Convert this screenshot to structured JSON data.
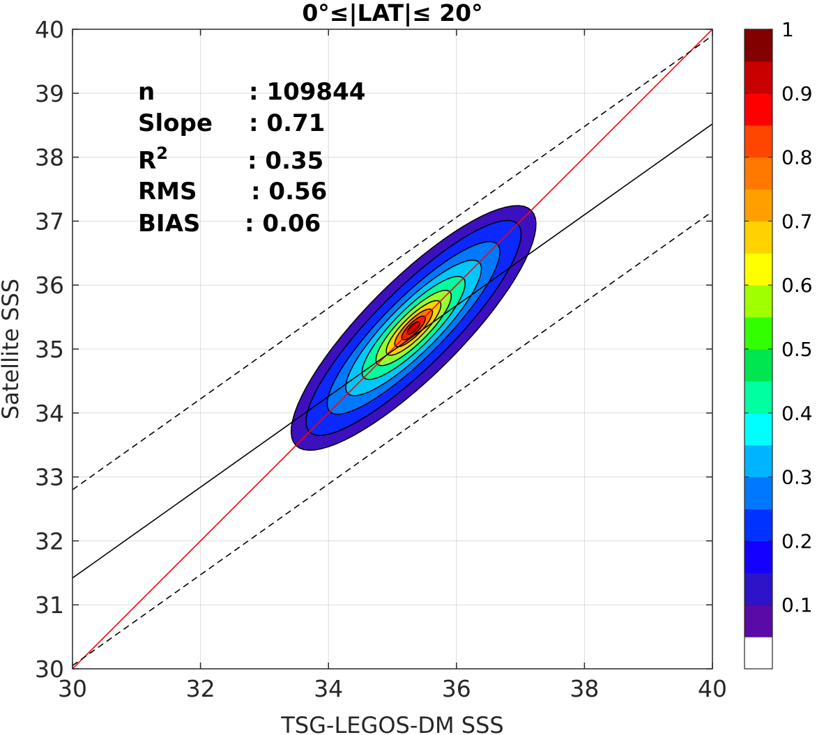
{
  "chart_data": {
    "type": "contour",
    "title": "0°≤|LAT|≤ 20°",
    "xlabel": "TSG-LEGOS-DM SSS",
    "ylabel": "Satellite SSS",
    "xlim": [
      30,
      40
    ],
    "ylim": [
      30,
      40
    ],
    "xticks": [
      30,
      32,
      34,
      36,
      38,
      40
    ],
    "yticks": [
      30,
      31,
      32,
      33,
      34,
      35,
      36,
      37,
      38,
      39,
      40
    ],
    "grid": true,
    "stats": [
      {
        "key": "n",
        "value": ": 109844"
      },
      {
        "key": "Slope",
        "value": ": 0.71"
      },
      {
        "key": "R",
        "sup": "2",
        "value": ": 0.35"
      },
      {
        "key": "RMS",
        "value": ": 0.56"
      },
      {
        "key": "BIAS",
        "value": ": 0.06"
      }
    ],
    "lines": [
      {
        "name": "one-to-one",
        "color": "#ff0000",
        "style": "solid",
        "x": [
          30,
          40
        ],
        "y": [
          30,
          40
        ]
      },
      {
        "name": "regression",
        "color": "#000000",
        "style": "solid",
        "x": [
          30,
          40
        ],
        "y": [
          31.42,
          38.52
        ]
      },
      {
        "name": "upper-bound",
        "color": "#000000",
        "style": "dashed",
        "x": [
          30,
          40
        ],
        "y": [
          32.8,
          39.9
        ]
      },
      {
        "name": "lower-bound",
        "color": "#000000",
        "style": "dashed",
        "x": [
          30,
          40
        ],
        "y": [
          30.05,
          37.15
        ]
      }
    ],
    "density": {
      "center": [
        35.33,
        35.33
      ],
      "angle_deg": 45,
      "levels": [
        {
          "level": 0.05,
          "color": "#3c10bf",
          "a": 2.6,
          "b": 0.75
        },
        {
          "level": 0.15,
          "color": "#0a28ff",
          "a": 2.3,
          "b": 0.6
        },
        {
          "level": 0.25,
          "color": "#0078ff",
          "a": 1.85,
          "b": 0.47
        },
        {
          "level": 0.35,
          "color": "#00c8ff",
          "a": 1.45,
          "b": 0.38
        },
        {
          "level": 0.45,
          "color": "#00ffa0",
          "a": 1.1,
          "b": 0.3
        },
        {
          "level": 0.55,
          "color": "#96ff32",
          "a": 0.8,
          "b": 0.23
        },
        {
          "level": 0.65,
          "color": "#ffd200",
          "a": 0.58,
          "b": 0.17
        },
        {
          "level": 0.75,
          "color": "#ff7800",
          "a": 0.4,
          "b": 0.12
        },
        {
          "level": 0.85,
          "color": "#ff2800",
          "a": 0.25,
          "b": 0.08
        },
        {
          "level": 0.95,
          "color": "#c80000",
          "a": 0.13,
          "b": 0.05
        }
      ]
    },
    "colorbar": {
      "ticks": [
        "1",
        "0.9",
        "0.8",
        "0.7",
        "0.6",
        "0.5",
        "0.4",
        "0.3",
        "0.2",
        "0.1"
      ],
      "colors": [
        "#ffffff",
        "#5a0aa5",
        "#2d14c8",
        "#1400ff",
        "#0032ff",
        "#0078ff",
        "#00b4ff",
        "#00ffff",
        "#00ffa0",
        "#00e650",
        "#32ff00",
        "#a0ff00",
        "#ffff00",
        "#ffd200",
        "#ffa000",
        "#ff7800",
        "#ff4600",
        "#ff0000",
        "#c80000",
        "#820000"
      ]
    }
  }
}
